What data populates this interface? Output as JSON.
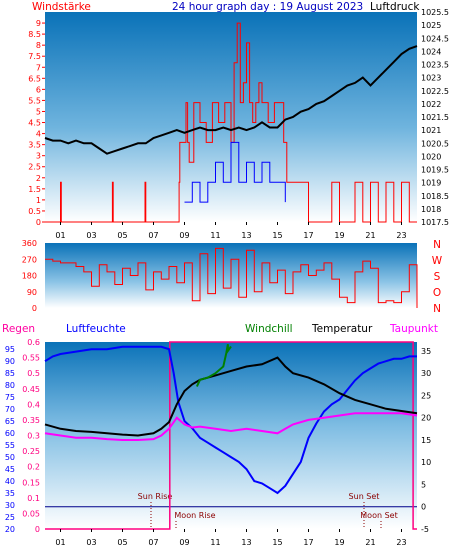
{
  "header": {
    "left": "Windstärke",
    "center": "24 hour graph day : 19 August 2023",
    "right": "Luftdruck"
  },
  "colors": {
    "wind": "#ff0000",
    "pressure": "#000000",
    "gust": "#0000ff",
    "humidity": "#0000ff",
    "windchill": "#008000",
    "temperature": "#000000",
    "dewpoint": "#ff00ff",
    "rain": "#ff0080",
    "bg_top": "#0a72b8",
    "bg_bottom": "#ffffff"
  },
  "chart_data": [
    {
      "id": "wind-pressure",
      "type": "line",
      "ylabel_left": "Windstärke",
      "ylabel_right": "Luftdruck",
      "x_ticks": [
        "01",
        "03",
        "05",
        "07",
        "09",
        "11",
        "13",
        "15",
        "17",
        "19",
        "21",
        "23"
      ],
      "y_left_ticks": [
        "0",
        "0.5",
        "1",
        "1.5",
        "2",
        "2.5",
        "3",
        "3.5",
        "4",
        "4.5",
        "5",
        "5.5",
        "6",
        "6.5",
        "7",
        "7.5",
        "8",
        "8.5",
        "9"
      ],
      "y_left_range": [
        0,
        9.5
      ],
      "y_right_ticks": [
        "1017.5",
        "1018",
        "1018.5",
        "1019",
        "1019.5",
        "1020",
        "1020.5",
        "1021",
        "1021.5",
        "1022",
        "1022.5",
        "1023",
        "1023.5",
        "1024",
        "1024.5",
        "1025",
        "1025.5"
      ],
      "y_right_range": [
        1017.5,
        1025.5
      ],
      "series": [
        {
          "name": "Luftdruck",
          "axis": "right",
          "x": [
            0,
            0.5,
            1,
            1.5,
            2,
            2.5,
            3,
            3.5,
            4,
            4.5,
            5,
            5.5,
            6,
            6.5,
            7,
            7.5,
            8,
            8.5,
            9,
            9.5,
            10,
            10.5,
            11,
            11.5,
            12,
            12.5,
            13,
            13.5,
            14,
            14.5,
            15,
            15.5,
            16,
            16.5,
            17,
            17.5,
            18,
            18.5,
            19,
            19.5,
            20,
            20.5,
            21,
            21.5,
            22,
            22.5,
            23,
            23.5,
            24
          ],
          "values": [
            1020.7,
            1020.6,
            1020.6,
            1020.5,
            1020.6,
            1020.5,
            1020.5,
            1020.3,
            1020.1,
            1020.2,
            1020.3,
            1020.4,
            1020.5,
            1020.5,
            1020.7,
            1020.8,
            1020.9,
            1021.0,
            1020.9,
            1021.0,
            1021.1,
            1021.0,
            1021.0,
            1021.1,
            1021.0,
            1021.1,
            1021.0,
            1021.1,
            1021.3,
            1021.1,
            1021.1,
            1021.4,
            1021.5,
            1021.7,
            1021.8,
            1022.0,
            1022.1,
            1022.3,
            1022.5,
            1022.7,
            1022.8,
            1023.0,
            1022.7,
            1023.0,
            1023.3,
            1023.6,
            1023.9,
            1024.1,
            1024.2
          ]
        },
        {
          "name": "Wind",
          "axis": "left",
          "x": [
            0,
            0.95,
            1.0,
            1.05,
            4.3,
            4.35,
            4.4,
            6.4,
            6.45,
            6.5,
            8.6,
            8.65,
            8.7,
            9.1,
            9.2,
            9.3,
            9.6,
            10,
            10.4,
            10.8,
            11.2,
            11.6,
            12,
            12.2,
            12.4,
            12.6,
            12.8,
            13,
            13.2,
            13.4,
            13.6,
            13.8,
            14,
            14.4,
            14.8,
            15.2,
            15.4,
            15.6,
            16.5,
            17,
            18.5,
            19,
            19.5,
            20,
            20.5,
            21,
            21.5,
            22,
            22.5,
            23,
            23.5,
            24
          ],
          "values": [
            0,
            0,
            1.8,
            0,
            0,
            1.8,
            0,
            0,
            1.8,
            0,
            0,
            1.8,
            3.6,
            5.4,
            3.6,
            2.7,
            5.4,
            4.5,
            3.6,
            5.4,
            4.5,
            5.4,
            3.6,
            7.2,
            9.0,
            5.4,
            6.3,
            8.1,
            5.4,
            4.5,
            5.4,
            6.3,
            5.4,
            4.5,
            5.4,
            5.4,
            3.6,
            1.8,
            1.8,
            0,
            1.8,
            0,
            0,
            1.8,
            0,
            1.8,
            0,
            1.8,
            0,
            1.8,
            0,
            0
          ]
        },
        {
          "name": "Böen",
          "axis": "left",
          "x": [
            9.0,
            9.5,
            10,
            10.5,
            11,
            11.5,
            12,
            12.5,
            13,
            13.5,
            14,
            14.5,
            15,
            15.5
          ],
          "values": [
            0.9,
            1.8,
            0.9,
            1.8,
            2.7,
            1.8,
            3.6,
            1.8,
            2.7,
            1.8,
            2.7,
            1.8,
            1.8,
            0.9
          ]
        }
      ]
    },
    {
      "id": "wind-direction",
      "type": "line",
      "y_ticks": [
        "0",
        "90",
        "180",
        "270",
        "360"
      ],
      "y_range": [
        0,
        360
      ],
      "compass_labels": [
        "N",
        "W",
        "S",
        "O",
        "N"
      ],
      "x_ticks": [],
      "series": [
        {
          "name": "Windrichtung",
          "x": [
            0,
            0.5,
            1,
            1.5,
            2,
            2.5,
            3,
            3.5,
            4,
            4.5,
            5,
            5.5,
            6,
            6.5,
            7,
            7.5,
            8,
            8.5,
            9,
            9.5,
            10,
            10.5,
            11,
            11.5,
            12,
            12.5,
            13,
            13.5,
            14,
            14.5,
            15,
            15.5,
            16,
            16.5,
            17,
            17.5,
            18,
            18.5,
            19,
            19.5,
            20,
            20.5,
            21,
            21.5,
            22,
            22.5,
            23,
            23.5,
            24
          ],
          "values": [
            270,
            260,
            250,
            250,
            230,
            200,
            120,
            240,
            200,
            130,
            220,
            180,
            250,
            100,
            200,
            160,
            230,
            140,
            250,
            40,
            300,
            80,
            330,
            110,
            270,
            60,
            320,
            90,
            250,
            140,
            210,
            80,
            200,
            240,
            180,
            210,
            250,
            160,
            60,
            30,
            200,
            260,
            220,
            30,
            40,
            30,
            90,
            240,
            0
          ]
        }
      ]
    },
    {
      "id": "humidity-temperature",
      "type": "line",
      "labels_top": [
        "Regen",
        "Luftfeuchte",
        "Windchill",
        "Temperatur",
        "Taupunkt"
      ],
      "x_ticks": [
        "01",
        "03",
        "05",
        "07",
        "09",
        "11",
        "13",
        "15",
        "17",
        "19",
        "21",
        "23"
      ],
      "y_rain_ticks": [
        "0",
        "0.05",
        "0.1",
        "0.15",
        "0.2",
        "0.25",
        "0.3",
        "0.35",
        "0.4",
        "0.45",
        "0.5",
        "0.55",
        "0.6"
      ],
      "y_humidity_ticks": [
        "20",
        "25",
        "30",
        "35",
        "40",
        "45",
        "50",
        "55",
        "60",
        "65",
        "70",
        "75",
        "80",
        "85",
        "90",
        "95"
      ],
      "y_humidity_range": [
        20,
        98
      ],
      "y_temp_ticks": [
        "-5",
        "0",
        "5",
        "10",
        "15",
        "20",
        "25",
        "30",
        "35"
      ],
      "y_temp_range": [
        -5,
        37
      ],
      "annotations": [
        "Sun Rise",
        "Sun Set",
        "Moon Rise",
        "Moon Set"
      ],
      "series": [
        {
          "name": "Luftfeuchte",
          "axis": "humidity",
          "x": [
            0,
            0.5,
            1,
            2,
            3,
            4,
            5,
            6,
            7,
            7.5,
            8,
            8.3,
            8.6,
            9,
            9.5,
            10,
            10.5,
            11,
            11.5,
            12,
            12.5,
            13,
            13.5,
            14,
            14.5,
            15,
            15.5,
            16,
            16.5,
            17,
            17.5,
            18,
            18.5,
            19,
            19.5,
            20,
            20.5,
            21,
            21.5,
            22,
            22.5,
            23,
            23.5,
            24
          ],
          "values": [
            90,
            92,
            93,
            94,
            95,
            95,
            96,
            96,
            96,
            96,
            95,
            85,
            73,
            65,
            62,
            58,
            56,
            54,
            52,
            50,
            48,
            45,
            40,
            39,
            37,
            35,
            38,
            43,
            48,
            58,
            64,
            69,
            72,
            74,
            78,
            82,
            85,
            87,
            89,
            90,
            91,
            91,
            92,
            92
          ]
        },
        {
          "name": "Temperatur",
          "axis": "temp",
          "x": [
            0,
            1,
            2,
            3,
            4,
            5,
            6,
            7,
            7.5,
            8,
            8.5,
            9,
            9.5,
            10,
            11,
            12,
            13,
            14,
            15,
            15.5,
            16,
            17,
            18,
            19,
            20,
            21,
            22,
            23,
            24
          ],
          "values": [
            18.5,
            17.5,
            17.0,
            16.8,
            16.5,
            16.2,
            16.0,
            16.5,
            17.5,
            19.0,
            23.0,
            26.0,
            27.5,
            28.5,
            29.5,
            30.5,
            31.5,
            32.0,
            33.5,
            31.5,
            30.0,
            29.0,
            27.5,
            25.5,
            24.0,
            23.0,
            22.0,
            21.5,
            21.0
          ]
        },
        {
          "name": "Taupunkt",
          "axis": "temp",
          "x": [
            0,
            1,
            2,
            3,
            4,
            5,
            6,
            7,
            7.5,
            8,
            8.5,
            9,
            9.5,
            10,
            11,
            12,
            13,
            14,
            15,
            15.5,
            16,
            17,
            18,
            19,
            20,
            21,
            22,
            23,
            24
          ],
          "values": [
            16.5,
            16.0,
            15.5,
            15.5,
            15.2,
            15.0,
            15.0,
            15.2,
            16.0,
            17.5,
            20.0,
            18.5,
            17.8,
            18.0,
            17.5,
            17.0,
            17.5,
            17.0,
            16.5,
            17.5,
            18.5,
            19.5,
            20.0,
            20.5,
            21.0,
            21.0,
            21.0,
            21.0,
            20.5
          ]
        },
        {
          "name": "Windchill",
          "axis": "temp",
          "x": [
            9.8,
            10,
            10.5,
            11,
            11.5,
            11.7,
            11.8,
            11.8,
            12
          ],
          "values": [
            27.0,
            28.5,
            29.0,
            30.0,
            31.5,
            34.5,
            36.5,
            35.0,
            36.0
          ]
        },
        {
          "name": "Regen",
          "axis": "rain",
          "x": [
            0,
            8.0,
            8.05,
            23.7,
            23.75,
            24
          ],
          "values": [
            0,
            0,
            0.6,
            0.6,
            0,
            0
          ]
        }
      ]
    }
  ]
}
